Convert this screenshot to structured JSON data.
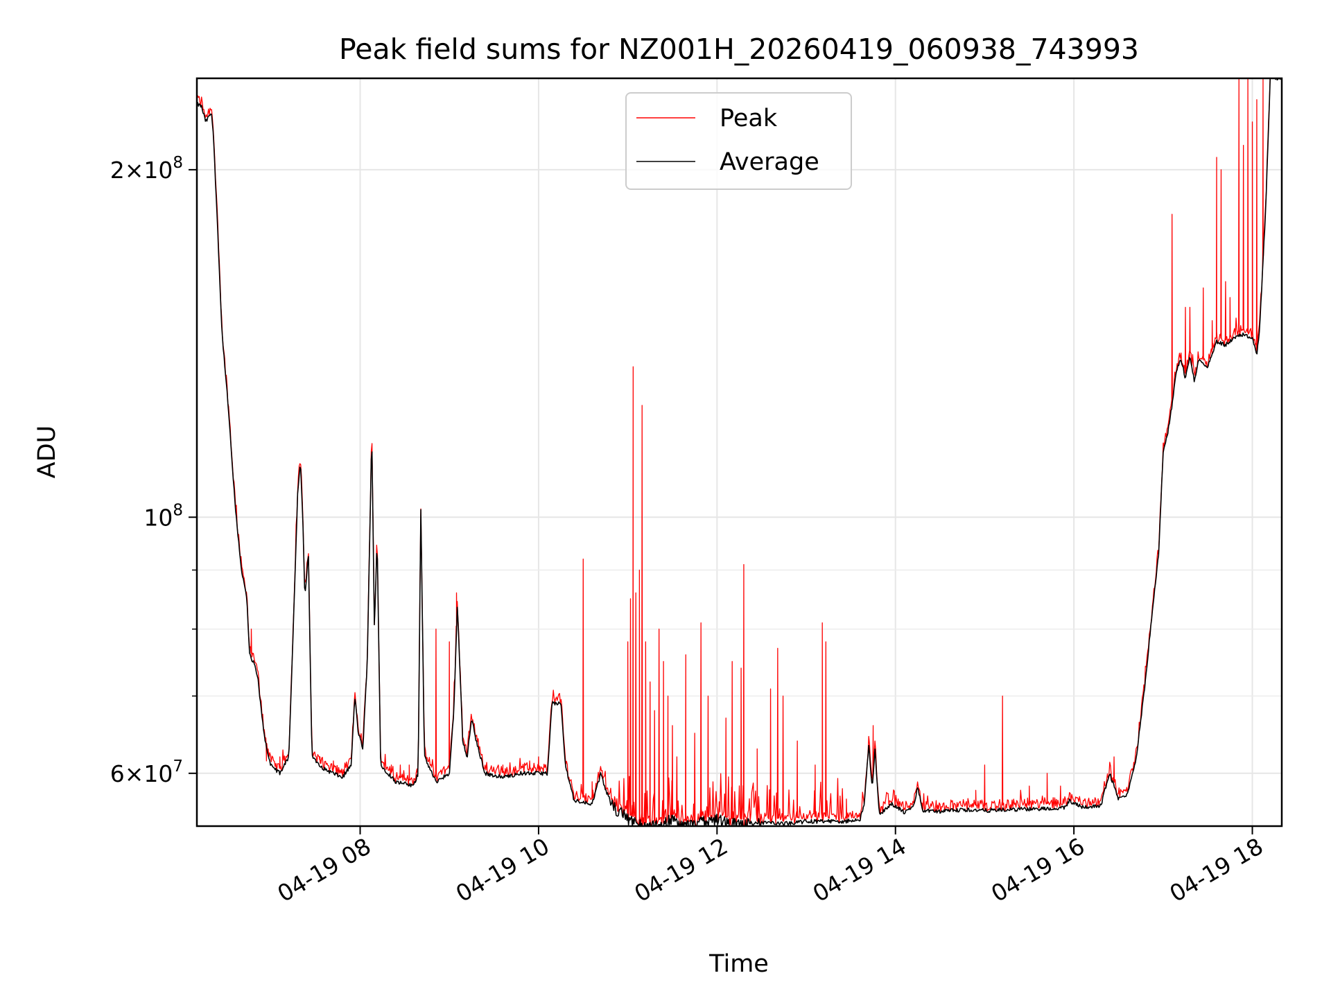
{
  "chart_data": {
    "type": "line",
    "title": "Peak field sums for NZ001H_20260419_060938_743993",
    "xlabel": "Time",
    "ylabel": "ADU",
    "yscale": "log",
    "xlim_hours": [
      6.17,
      18.33
    ],
    "ylim": [
      54000000,
      240000000
    ],
    "grid": true,
    "legend_position": "upper center",
    "x_ticks": [
      {
        "hour": 8,
        "label": "04-19 08"
      },
      {
        "hour": 10,
        "label": "04-19 10"
      },
      {
        "hour": 12,
        "label": "04-19 12"
      },
      {
        "hour": 14,
        "label": "04-19 14"
      },
      {
        "hour": 16,
        "label": "04-19 16"
      },
      {
        "hour": 18,
        "label": "04-19 18"
      }
    ],
    "y_major_ticks": [
      {
        "value": 60000000,
        "mantissa": "6",
        "exponent": "7"
      },
      {
        "value": 100000000,
        "mantissa": "",
        "exponent": "8"
      },
      {
        "value": 200000000,
        "mantissa": "2",
        "exponent": "8"
      }
    ],
    "y_minor_ticks": [
      70000000,
      80000000,
      90000000
    ],
    "times_label": "hour of day 2026-04-19",
    "series": [
      {
        "name": "Average",
        "color": "#000000",
        "points": [
          [
            6.17,
            228000000
          ],
          [
            6.22,
            227000000
          ],
          [
            6.27,
            220000000
          ],
          [
            6.33,
            224000000
          ],
          [
            6.35,
            218000000
          ],
          [
            6.4,
            180000000
          ],
          [
            6.45,
            145000000
          ],
          [
            6.52,
            125000000
          ],
          [
            6.6,
            102000000
          ],
          [
            6.67,
            90000000
          ],
          [
            6.73,
            85000000
          ],
          [
            6.76,
            76000000
          ],
          [
            6.8,
            75000000
          ],
          [
            6.85,
            73000000
          ],
          [
            6.9,
            67000000
          ],
          [
            6.95,
            63000000
          ],
          [
            7.0,
            61000000
          ],
          [
            7.1,
            60000000
          ],
          [
            7.2,
            62000000
          ],
          [
            7.25,
            80000000
          ],
          [
            7.3,
            105000000
          ],
          [
            7.33,
            112000000
          ],
          [
            7.36,
            98000000
          ],
          [
            7.38,
            85000000
          ],
          [
            7.42,
            93000000
          ],
          [
            7.46,
            62000000
          ],
          [
            7.6,
            60500000
          ],
          [
            7.8,
            59500000
          ],
          [
            7.9,
            61000000
          ],
          [
            7.94,
            70000000
          ],
          [
            7.98,
            65000000
          ],
          [
            8.03,
            63000000
          ],
          [
            8.08,
            75000000
          ],
          [
            8.13,
            118000000
          ],
          [
            8.16,
            80000000
          ],
          [
            8.19,
            96000000
          ],
          [
            8.23,
            61000000
          ],
          [
            8.4,
            59000000
          ],
          [
            8.6,
            58500000
          ],
          [
            8.65,
            60000000
          ],
          [
            8.68,
            102000000
          ],
          [
            8.72,
            62000000
          ],
          [
            8.85,
            59000000
          ],
          [
            9.0,
            60000000
          ],
          [
            9.05,
            68000000
          ],
          [
            9.09,
            84000000
          ],
          [
            9.15,
            64000000
          ],
          [
            9.2,
            62000000
          ],
          [
            9.25,
            67000000
          ],
          [
            9.3,
            64000000
          ],
          [
            9.4,
            60000000
          ],
          [
            9.6,
            59500000
          ],
          [
            9.8,
            60000000
          ],
          [
            10.1,
            60000000
          ],
          [
            10.15,
            69000000
          ],
          [
            10.25,
            69000000
          ],
          [
            10.3,
            61000000
          ],
          [
            10.4,
            56800000
          ],
          [
            10.6,
            56500000
          ],
          [
            10.7,
            60000000
          ],
          [
            10.75,
            58000000
          ],
          [
            10.85,
            56000000
          ],
          [
            11.0,
            54800000
          ],
          [
            11.2,
            53800000
          ],
          [
            11.4,
            54300000
          ],
          [
            11.5,
            54700000
          ],
          [
            11.6,
            54000000
          ],
          [
            11.8,
            54300000
          ],
          [
            12.0,
            54700000
          ],
          [
            12.2,
            54200000
          ],
          [
            12.5,
            54300000
          ],
          [
            12.8,
            54300000
          ],
          [
            13.0,
            54500000
          ],
          [
            13.3,
            54500000
          ],
          [
            13.6,
            54600000
          ],
          [
            13.65,
            56500000
          ],
          [
            13.7,
            63500000
          ],
          [
            13.74,
            58000000
          ],
          [
            13.77,
            63000000
          ],
          [
            13.82,
            55200000
          ],
          [
            13.95,
            56500000
          ],
          [
            14.1,
            55500000
          ],
          [
            14.2,
            56000000
          ],
          [
            14.25,
            58500000
          ],
          [
            14.3,
            55700000
          ],
          [
            14.5,
            55600000
          ],
          [
            14.8,
            55800000
          ],
          [
            15.0,
            55700000
          ],
          [
            15.3,
            55800000
          ],
          [
            15.6,
            55900000
          ],
          [
            15.9,
            56000000
          ],
          [
            15.95,
            56800000
          ],
          [
            16.1,
            56100000
          ],
          [
            16.3,
            56200000
          ],
          [
            16.4,
            60000000
          ],
          [
            16.5,
            57000000
          ],
          [
            16.6,
            57500000
          ],
          [
            16.7,
            62000000
          ],
          [
            16.8,
            72000000
          ],
          [
            16.9,
            86000000
          ],
          [
            16.95,
            93000000
          ],
          [
            17.0,
            114000000
          ],
          [
            17.05,
            118000000
          ],
          [
            17.1,
            125000000
          ],
          [
            17.15,
            134000000
          ],
          [
            17.2,
            137000000
          ],
          [
            17.25,
            132000000
          ],
          [
            17.3,
            138000000
          ],
          [
            17.35,
            131000000
          ],
          [
            17.4,
            137000000
          ],
          [
            17.5,
            135000000
          ],
          [
            17.6,
            142000000
          ],
          [
            17.7,
            141000000
          ],
          [
            17.8,
            143000000
          ],
          [
            17.9,
            144000000
          ],
          [
            18.0,
            143000000
          ],
          [
            18.05,
            138000000
          ],
          [
            18.08,
            145000000
          ],
          [
            18.15,
            185000000
          ],
          [
            18.2,
            240000000
          ],
          [
            18.33,
            240000000
          ]
        ]
      },
      {
        "name": "Peak",
        "color": "#ff0000",
        "spikes": [
          [
            6.78,
            80000000
          ],
          [
            6.95,
            61500000
          ],
          [
            7.1,
            62000000
          ],
          [
            7.55,
            62000000
          ],
          [
            7.7,
            61500000
          ],
          [
            8.35,
            61000000
          ],
          [
            8.45,
            61000000
          ],
          [
            8.55,
            61000000
          ],
          [
            8.85,
            80000000
          ],
          [
            9.0,
            78000000
          ],
          [
            9.08,
            86000000
          ],
          [
            9.6,
            61000000
          ],
          [
            9.9,
            61500000
          ],
          [
            10.0,
            62000000
          ],
          [
            10.5,
            92000000
          ],
          [
            10.6,
            59000000
          ],
          [
            11.0,
            78000000
          ],
          [
            11.03,
            85000000
          ],
          [
            11.06,
            135000000
          ],
          [
            11.09,
            86000000
          ],
          [
            11.13,
            90000000
          ],
          [
            11.16,
            125000000
          ],
          [
            11.2,
            78000000
          ],
          [
            11.25,
            72000000
          ],
          [
            11.3,
            68000000
          ],
          [
            11.35,
            80000000
          ],
          [
            11.4,
            75000000
          ],
          [
            11.45,
            70000000
          ],
          [
            11.5,
            66000000
          ],
          [
            11.55,
            62000000
          ],
          [
            11.65,
            76000000
          ],
          [
            11.75,
            65000000
          ],
          [
            11.82,
            81000000
          ],
          [
            11.9,
            70000000
          ],
          [
            12.1,
            67000000
          ],
          [
            12.17,
            75000000
          ],
          [
            12.27,
            74000000
          ],
          [
            12.3,
            91000000
          ],
          [
            12.45,
            63000000
          ],
          [
            12.6,
            71000000
          ],
          [
            12.68,
            77000000
          ],
          [
            12.74,
            70000000
          ],
          [
            12.9,
            64000000
          ],
          [
            13.1,
            61000000
          ],
          [
            13.18,
            81000000
          ],
          [
            13.22,
            78000000
          ],
          [
            13.45,
            57000000
          ],
          [
            13.75,
            66000000
          ],
          [
            14.9,
            58000000
          ],
          [
            15.0,
            61000000
          ],
          [
            15.2,
            70000000
          ],
          [
            15.5,
            58500000
          ],
          [
            15.7,
            60000000
          ],
          [
            15.85,
            58500000
          ],
          [
            16.45,
            62000000
          ],
          [
            17.1,
            183000000
          ],
          [
            17.25,
            152000000
          ],
          [
            17.3,
            152000000
          ],
          [
            17.45,
            158000000
          ],
          [
            17.55,
            148000000
          ],
          [
            17.6,
            205000000
          ],
          [
            17.65,
            200000000
          ],
          [
            17.7,
            160000000
          ],
          [
            17.75,
            155000000
          ],
          [
            17.85,
            240000000
          ],
          [
            17.9,
            210000000
          ],
          [
            17.95,
            240000000
          ],
          [
            18.0,
            220000000
          ],
          [
            18.05,
            230000000
          ],
          [
            18.12,
            240000000
          ]
        ]
      }
    ]
  }
}
